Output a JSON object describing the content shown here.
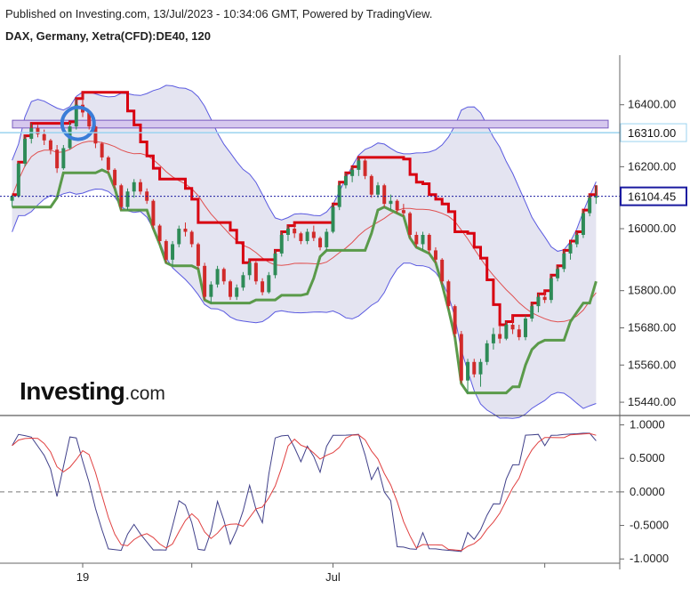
{
  "header": {
    "published": "Published on Investing.com, 13/Jul/2023 - 10:34:06 GMT, Powered by TradingView.",
    "symbol": "DAX, Germany, Xetra(CFD):DE40, 120"
  },
  "logo": {
    "brand": "Investing",
    "suffix": ".com"
  },
  "colors": {
    "up": "#2e8b57",
    "down": "#d12a2a",
    "band_fill": "#e4e4f1",
    "band_line": "#5a5ae0",
    "red_step": "#d80010",
    "green_step": "#5a9a4a",
    "ma_line": "#e05050",
    "price_tag_bg": "#ffffff",
    "current_line": "#1a1aa0",
    "level_line": "#9bd3ef",
    "zone_fill": "#d6c8ee",
    "zone_stroke": "#7a5cc0",
    "circle": "#3a7dd8",
    "osc_main": "#40408a",
    "osc_signal": "#e04040"
  },
  "chart_data": [
    {
      "type": "candlestick",
      "title": "DAX, Germany, Xetra(CFD):DE40, 120",
      "x_labels": [
        {
          "index": 11,
          "label": "19"
        },
        {
          "index": 28,
          "label": ""
        },
        {
          "index": 50,
          "label": "Jul"
        },
        {
          "index": 83,
          "label": ""
        }
      ],
      "y_ticks": [
        16400,
        16200,
        16000,
        15800,
        15680,
        15560,
        15440
      ],
      "ylim": [
        15400,
        16560
      ],
      "price_tags": [
        {
          "value": 16310.0,
          "label": "16310.00",
          "style": "level"
        },
        {
          "value": 16104.45,
          "label": "16104.45",
          "style": "current"
        }
      ],
      "resistance_zone": [
        16325,
        16350
      ],
      "candles": [
        [
          16090,
          16110,
          16070,
          16105
        ],
        [
          16105,
          16215,
          16100,
          16210
        ],
        [
          16210,
          16300,
          16200,
          16290
        ],
        [
          16290,
          16340,
          16275,
          16325
        ],
        [
          16325,
          16335,
          16295,
          16305
        ],
        [
          16305,
          16320,
          16270,
          16285
        ],
        [
          16285,
          16290,
          16240,
          16255
        ],
        [
          16255,
          16270,
          16180,
          16195
        ],
        [
          16195,
          16270,
          16190,
          16260
        ],
        [
          16260,
          16345,
          16255,
          16330
        ],
        [
          16330,
          16420,
          16320,
          16400
        ],
        [
          16400,
          16440,
          16360,
          16375
        ],
        [
          16375,
          16380,
          16320,
          16330
        ],
        [
          16330,
          16335,
          16260,
          16275
        ],
        [
          16275,
          16280,
          16220,
          16230
        ],
        [
          16230,
          16235,
          16180,
          16190
        ],
        [
          16190,
          16195,
          16130,
          16140
        ],
        [
          16140,
          16145,
          16060,
          16070
        ],
        [
          16070,
          16130,
          16060,
          16120
        ],
        [
          16120,
          16160,
          16100,
          16150
        ],
        [
          16150,
          16160,
          16110,
          16120
        ],
        [
          16120,
          16130,
          16080,
          16090
        ],
        [
          16090,
          16095,
          16000,
          16010
        ],
        [
          16010,
          16015,
          15950,
          15960
        ],
        [
          15960,
          15965,
          15890,
          15900
        ],
        [
          15900,
          15960,
          15880,
          15950
        ],
        [
          15950,
          16010,
          15940,
          16000
        ],
        [
          16000,
          16020,
          15975,
          15990
        ],
        [
          15990,
          15995,
          15940,
          15950
        ],
        [
          15950,
          15955,
          15870,
          15880
        ],
        [
          15880,
          15890,
          15770,
          15780
        ],
        [
          15780,
          15830,
          15760,
          15820
        ],
        [
          15820,
          15880,
          15810,
          15870
        ],
        [
          15870,
          15875,
          15820,
          15830
        ],
        [
          15830,
          15835,
          15770,
          15780
        ],
        [
          15780,
          15820,
          15770,
          15810
        ],
        [
          15810,
          15860,
          15800,
          15850
        ],
        [
          15850,
          15900,
          15835,
          15890
        ],
        [
          15890,
          15895,
          15820,
          15830
        ],
        [
          15830,
          15840,
          15785,
          15795
        ],
        [
          15795,
          15860,
          15790,
          15850
        ],
        [
          15850,
          15930,
          15840,
          15920
        ],
        [
          15920,
          15990,
          15910,
          15980
        ],
        [
          15980,
          16010,
          15960,
          16000
        ],
        [
          16000,
          16020,
          15970,
          15985
        ],
        [
          15985,
          15990,
          15950,
          15960
        ],
        [
          15960,
          16000,
          15950,
          15990
        ],
        [
          15990,
          16010,
          15960,
          15970
        ],
        [
          15970,
          15975,
          15930,
          15940
        ],
        [
          15940,
          16000,
          15930,
          15990
        ],
        [
          15990,
          16080,
          15985,
          16070
        ],
        [
          16070,
          16150,
          16060,
          16140
        ],
        [
          16140,
          16180,
          16130,
          16170
        ],
        [
          16170,
          16200,
          16150,
          16190
        ],
        [
          16190,
          16230,
          16170,
          16220
        ],
        [
          16220,
          16225,
          16160,
          16170
        ],
        [
          16170,
          16175,
          16100,
          16110
        ],
        [
          16110,
          16150,
          16100,
          16140
        ],
        [
          16140,
          16145,
          16070,
          16080
        ],
        [
          16080,
          16110,
          16060,
          16090
        ],
        [
          16090,
          16095,
          16050,
          16060
        ],
        [
          16060,
          16080,
          16040,
          16050
        ],
        [
          16050,
          16055,
          15970,
          15980
        ],
        [
          15980,
          15990,
          15940,
          15950
        ],
        [
          15950,
          15990,
          15930,
          15980
        ],
        [
          15980,
          15985,
          15920,
          15930
        ],
        [
          15930,
          15940,
          15890,
          15900
        ],
        [
          15900,
          15905,
          15820,
          15830
        ],
        [
          15830,
          15835,
          15740,
          15750
        ],
        [
          15750,
          15755,
          15650,
          15660
        ],
        [
          15660,
          15670,
          15500,
          15510
        ],
        [
          15510,
          15580,
          15470,
          15570
        ],
        [
          15570,
          15580,
          15520,
          15530
        ],
        [
          15530,
          15580,
          15490,
          15570
        ],
        [
          15570,
          15640,
          15560,
          15630
        ],
        [
          15630,
          15680,
          15610,
          15660
        ],
        [
          15660,
          15690,
          15630,
          15645
        ],
        [
          15645,
          15700,
          15640,
          15690
        ],
        [
          15690,
          15720,
          15660,
          15675
        ],
        [
          15675,
          15690,
          15640,
          15650
        ],
        [
          15650,
          15720,
          15640,
          15710
        ],
        [
          15710,
          15760,
          15700,
          15750
        ],
        [
          15750,
          15790,
          15730,
          15780
        ],
        [
          15780,
          15800,
          15760,
          15770
        ],
        [
          15770,
          15850,
          15760,
          15840
        ],
        [
          15840,
          15880,
          15830,
          15870
        ],
        [
          15870,
          15930,
          15860,
          15920
        ],
        [
          15920,
          15960,
          15900,
          15950
        ],
        [
          15950,
          15990,
          15940,
          15980
        ],
        [
          15980,
          16060,
          15970,
          16050
        ],
        [
          16050,
          16110,
          16040,
          16100
        ],
        [
          16100,
          16140,
          16080,
          16105
        ]
      ]
    },
    {
      "type": "line",
      "title": "",
      "y_ticks": [
        "1.0000",
        "0.5000",
        "0.0000",
        "-0.5000",
        "-1.0000"
      ],
      "ylim": [
        -1.05,
        1.1
      ],
      "zero_line": 0
    }
  ]
}
